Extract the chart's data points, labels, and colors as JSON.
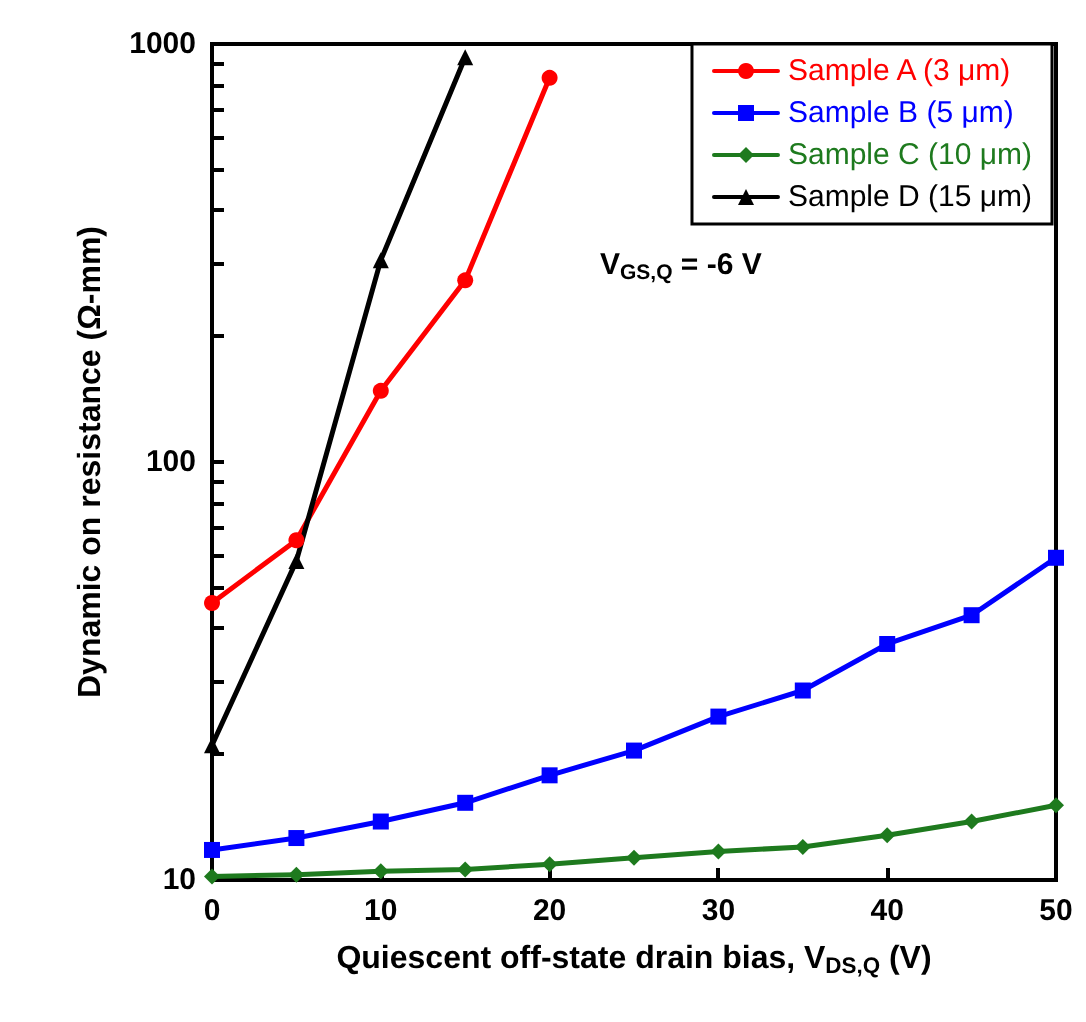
{
  "chart_data": {
    "type": "line",
    "xlabel": "Quiescent off-state drain bias, V$_{DS,Q}$ (V)",
    "ylabel": "Dynamic on resistance (Ω-mm)",
    "annotations": [
      "V$_{GS,Q}$ = -6 V"
    ],
    "x": [
      0,
      5,
      10,
      15,
      20,
      25,
      30,
      35,
      40,
      45,
      50
    ],
    "series": [
      {
        "name": "Sample A (3 μm)",
        "color": "#ff0000",
        "marker": "circle",
        "x": [
          0,
          5,
          10,
          15,
          20
        ],
        "values": [
          46,
          65,
          148,
          272,
          830
        ]
      },
      {
        "name": "Sample B (5 μm)",
        "color": "#0000ff",
        "marker": "square",
        "values": [
          11.8,
          12.6,
          13.8,
          15.3,
          17.8,
          20.4,
          24.6,
          28.4,
          36.7,
          43,
          59
        ]
      },
      {
        "name": "Sample C (10 μm)",
        "color": "#1e7a1e",
        "marker": "diamond",
        "values": [
          10.2,
          10.3,
          10.5,
          10.6,
          10.9,
          11.3,
          11.7,
          12,
          12.8,
          13.8,
          15.1
        ]
      },
      {
        "name": "Sample D (15 μm)",
        "color": "#000000",
        "marker": "triangle",
        "x": [
          0,
          5,
          10,
          15
        ],
        "values": [
          21,
          58,
          304,
          930
        ]
      }
    ],
    "log": "y",
    "xlim": [
      0,
      50
    ],
    "xticks": [
      0,
      10,
      20,
      30,
      40,
      50
    ],
    "ylim": [
      10,
      1000
    ],
    "yticks": [
      10,
      {
        "value": 20,
        "label": null
      },
      {
        "value": 30,
        "label": null
      },
      {
        "value": 40,
        "label": null
      },
      {
        "value": 50,
        "label": null
      },
      {
        "value": 60,
        "label": null
      },
      {
        "value": 70,
        "label": null
      },
      {
        "value": 80,
        "label": null
      },
      {
        "value": 90,
        "label": null
      },
      100,
      {
        "value": 200,
        "label": null
      },
      {
        "value": 300,
        "label": null
      },
      {
        "value": 400,
        "label": null
      },
      {
        "value": 500,
        "label": null
      },
      {
        "value": 600,
        "label": null
      },
      {
        "value": 700,
        "label": null
      },
      {
        "value": 800,
        "label": null
      },
      {
        "value": 900,
        "label": null
      },
      1000
    ],
    "grid": false,
    "legend": "top right",
    "line_style": "solid"
  }
}
